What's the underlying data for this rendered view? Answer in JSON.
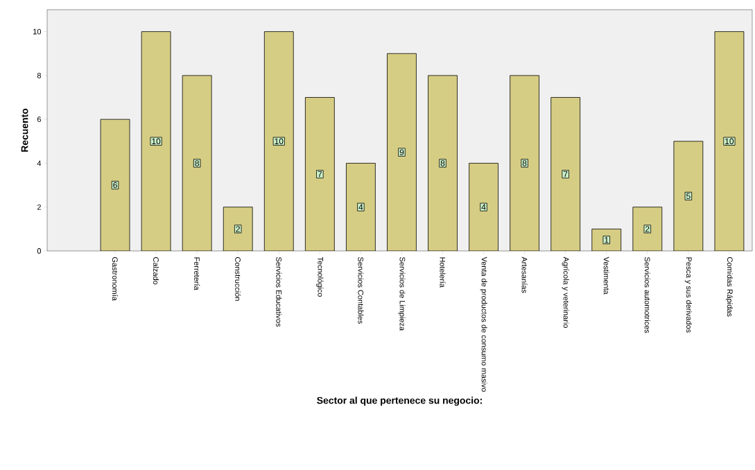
{
  "chart_data": {
    "type": "bar",
    "xlabel": "Sector al que pertenece su negocio:",
    "ylabel": "Recuento",
    "categories": [
      "Gastronomía",
      "Calzado",
      "Ferretería",
      "Construcción",
      "Servicios Educativos",
      "Tecnológico",
      "Servicios Contables",
      "Servicios de Limpieza",
      "Hotelería",
      "Venta de productos de consumo masivo",
      "Artesanías",
      "Agrícola y veterinario",
      "Vestimenta",
      "Servicios automotrices",
      "Pesca y sus derivados",
      "Comidas Rápidas"
    ],
    "values": [
      6,
      10,
      8,
      2,
      10,
      7,
      4,
      9,
      8,
      4,
      8,
      7,
      1,
      2,
      5,
      10
    ],
    "color": "#d6cd84",
    "ylim": [
      0,
      11
    ],
    "yticks": [
      0,
      2,
      4,
      6,
      8,
      10
    ],
    "data_labels": true,
    "grid": false
  }
}
